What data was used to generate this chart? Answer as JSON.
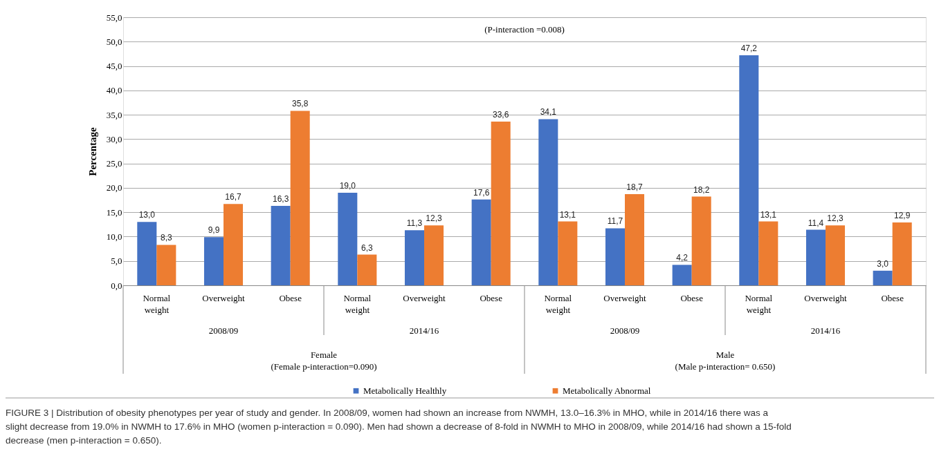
{
  "chart_data": {
    "type": "bar",
    "categories": [
      "Normal weight",
      "Overweight",
      "Obese",
      "Normal weight",
      "Overweight",
      "Obese",
      "Normal weight",
      "Overweight",
      "Obese",
      "Normal weight",
      "Overweight",
      "Obese"
    ],
    "series": [
      {
        "name": "Metabolically Healthly",
        "color": "#4472c4",
        "values": [
          13.0,
          9.9,
          16.3,
          19.0,
          11.3,
          17.6,
          34.1,
          11.7,
          4.2,
          47.2,
          11.4,
          3.0
        ],
        "value_labels": [
          "13,0",
          "9,9",
          "16,3",
          "19,0",
          "11,3",
          "17,6",
          "34,1",
          "11,7",
          "4,2",
          "47,2",
          "11,4",
          "3,0"
        ]
      },
      {
        "name": "Metabolically Abnormal",
        "color": "#ed7d31",
        "values": [
          8.3,
          16.7,
          35.8,
          6.3,
          12.3,
          33.6,
          13.1,
          18.7,
          18.2,
          13.1,
          12.3,
          12.9
        ],
        "value_labels": [
          "8,3",
          "16,7",
          "35,8",
          "6,3",
          "12,3",
          "33,6",
          "13,1",
          "18,7",
          "18,2",
          "13,1",
          "12,3",
          "12,9"
        ]
      }
    ],
    "ylabel": "Percentage",
    "ylim": [
      0,
      55
    ],
    "yticks": [
      {
        "value": 0,
        "label": "0,0"
      },
      {
        "value": 5,
        "label": "5,0"
      },
      {
        "value": 10,
        "label": "10,0"
      },
      {
        "value": 15,
        "label": "15,0"
      },
      {
        "value": 20,
        "label": "20,0"
      },
      {
        "value": 25,
        "label": "25,0"
      },
      {
        "value": 30,
        "label": "30,0"
      },
      {
        "value": 35,
        "label": "35,0"
      },
      {
        "value": 40,
        "label": "40,0"
      },
      {
        "value": 45,
        "label": "45,0"
      },
      {
        "value": 50,
        "label": "50,0"
      },
      {
        "value": 55,
        "label": "55,0"
      }
    ],
    "grid": "y",
    "legend": "bottom",
    "annotations": [
      "(P-interaction =0.008)",
      "2008/09",
      "2014/16",
      "2008/09",
      "2014/16",
      "Female",
      "Male",
      "(Female p-interaction=0.090)",
      "(Male p-interaction= 0.650)",
      "FIGURE 3 | Distribution of obesity phenotypes per year of study and gender. In 2008/09, women had shown an increase from NWMH, 13.0–16.3% in MHO, while in 2014/16 there was a slight decrease from 19.0% in NWMH to 17.6% in MHO (women p-interaction = 0.090). Men had shown a decrease of 8-fold in NWMH to MHO in 2008/09, while 2014/16 had shown a 15-fold decrease (men p-interaction = 0.650)."
    ]
  }
}
